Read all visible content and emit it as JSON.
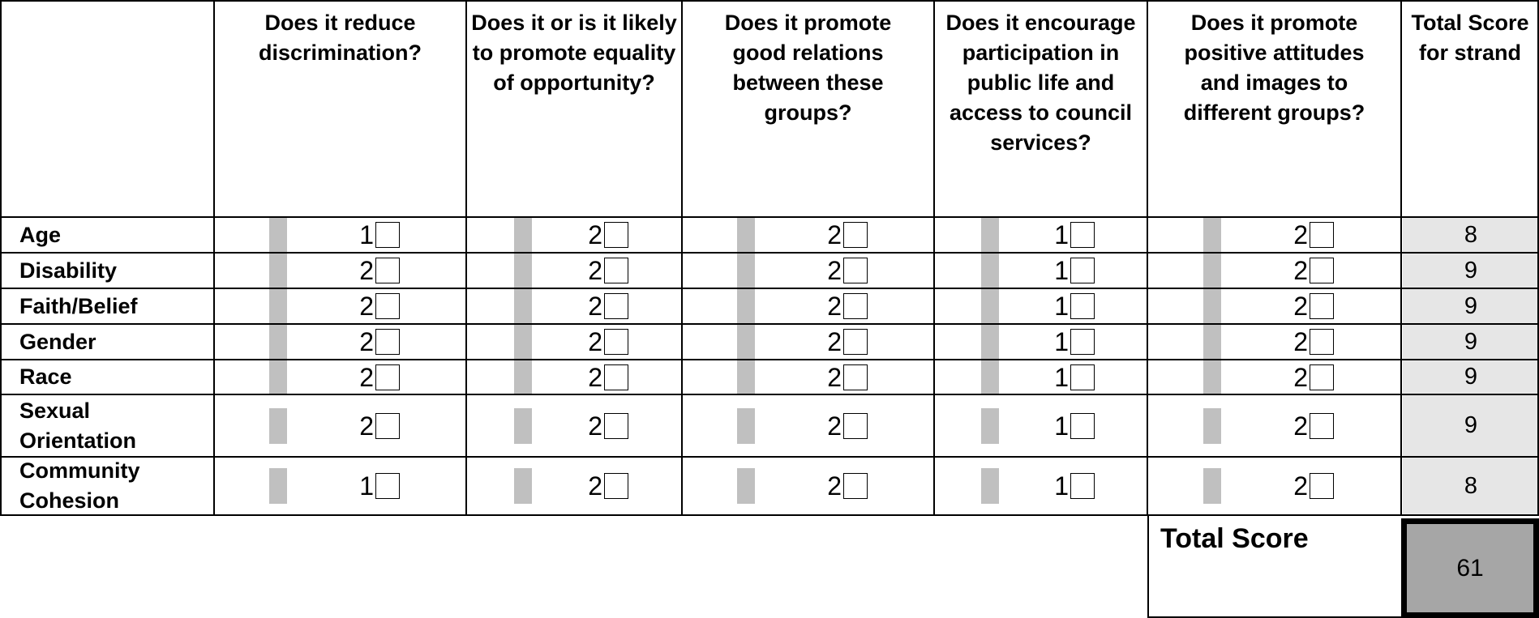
{
  "columns": [
    {
      "label": "Does it reduce discrimination?"
    },
    {
      "label": "Does it or is it likely to promote equality of opportunity?"
    },
    {
      "label": "Does it promote good relations between these groups?"
    },
    {
      "label": "Does it encourage participation in public life and access to council services?"
    },
    {
      "label": "Does it promote positive attitudes and images to different groups?"
    },
    {
      "label": "Total Score for strand"
    }
  ],
  "rows": [
    {
      "label": "Age",
      "scores": [
        "1",
        "2",
        "2",
        "1",
        "2"
      ],
      "total": "8"
    },
    {
      "label": "Disability",
      "scores": [
        "2",
        "2",
        "2",
        "1",
        "2"
      ],
      "total": "9"
    },
    {
      "label": "Faith/Belief",
      "scores": [
        "2",
        "2",
        "2",
        "1",
        "2"
      ],
      "total": "9"
    },
    {
      "label": "Gender",
      "scores": [
        "2",
        "2",
        "2",
        "1",
        "2"
      ],
      "total": "9"
    },
    {
      "label": "Race",
      "scores": [
        "2",
        "2",
        "2",
        "1",
        "2"
      ],
      "total": "9"
    },
    {
      "label": "Sexual Orientation",
      "scores": [
        "2",
        "2",
        "2",
        "1",
        "2"
      ],
      "total": "9"
    },
    {
      "label": "Community Cohesion",
      "scores": [
        "1",
        "2",
        "2",
        "1",
        "2"
      ],
      "total": "8"
    }
  ],
  "total_score": {
    "label": "Total Score",
    "value": "61"
  }
}
